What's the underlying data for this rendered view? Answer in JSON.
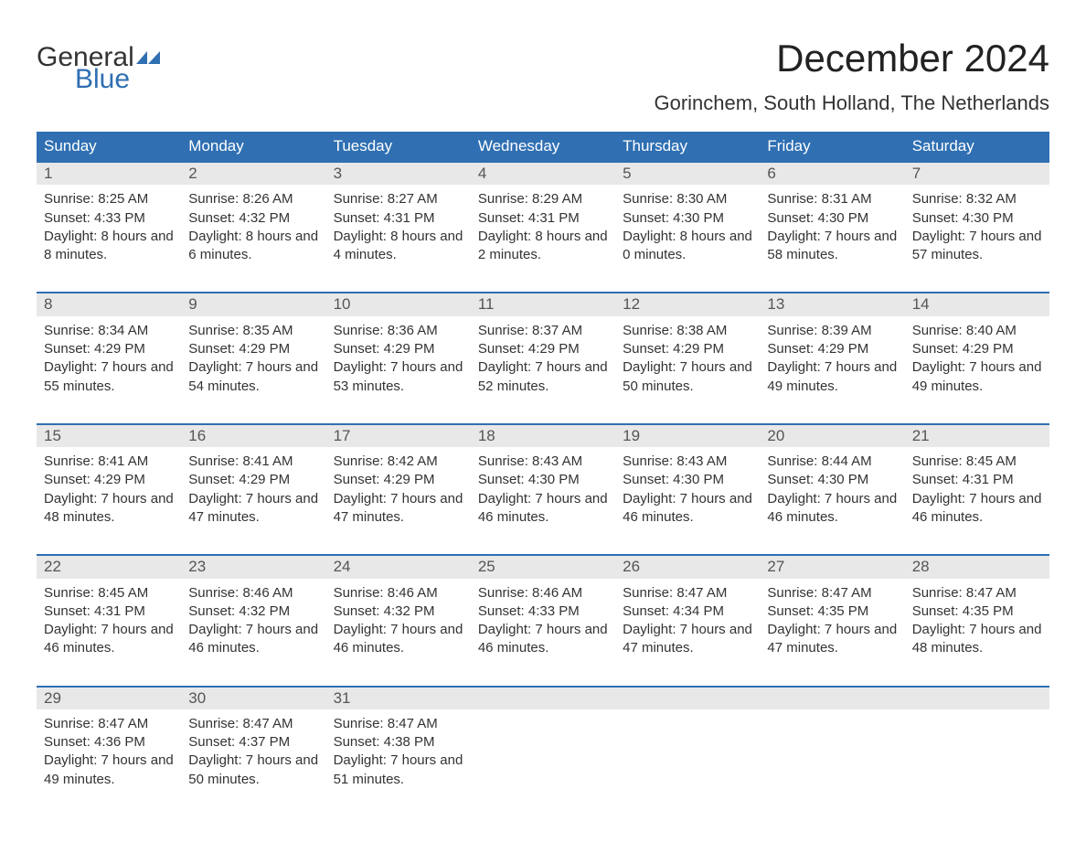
{
  "logo": {
    "line1": "General",
    "line2": "Blue"
  },
  "title": "December 2024",
  "location": "Gorinchem, South Holland, The Netherlands",
  "colors": {
    "header_bg": "#2f6fb2",
    "header_text": "#ffffff",
    "daynum_bg": "#e8e8e8",
    "rule": "#2f6fb2",
    "text": "#333333",
    "bg": "#ffffff"
  },
  "fonts": {
    "title_size_pt": 42,
    "location_size_pt": 22,
    "header_size_pt": 17,
    "cell_size_pt": 15
  },
  "weekdays": [
    "Sunday",
    "Monday",
    "Tuesday",
    "Wednesday",
    "Thursday",
    "Friday",
    "Saturday"
  ],
  "weeks": [
    [
      {
        "n": "1",
        "sr": "8:25 AM",
        "ss": "4:33 PM",
        "dl": "8 hours and 8 minutes."
      },
      {
        "n": "2",
        "sr": "8:26 AM",
        "ss": "4:32 PM",
        "dl": "8 hours and 6 minutes."
      },
      {
        "n": "3",
        "sr": "8:27 AM",
        "ss": "4:31 PM",
        "dl": "8 hours and 4 minutes."
      },
      {
        "n": "4",
        "sr": "8:29 AM",
        "ss": "4:31 PM",
        "dl": "8 hours and 2 minutes."
      },
      {
        "n": "5",
        "sr": "8:30 AM",
        "ss": "4:30 PM",
        "dl": "8 hours and 0 minutes."
      },
      {
        "n": "6",
        "sr": "8:31 AM",
        "ss": "4:30 PM",
        "dl": "7 hours and 58 minutes."
      },
      {
        "n": "7",
        "sr": "8:32 AM",
        "ss": "4:30 PM",
        "dl": "7 hours and 57 minutes."
      }
    ],
    [
      {
        "n": "8",
        "sr": "8:34 AM",
        "ss": "4:29 PM",
        "dl": "7 hours and 55 minutes."
      },
      {
        "n": "9",
        "sr": "8:35 AM",
        "ss": "4:29 PM",
        "dl": "7 hours and 54 minutes."
      },
      {
        "n": "10",
        "sr": "8:36 AM",
        "ss": "4:29 PM",
        "dl": "7 hours and 53 minutes."
      },
      {
        "n": "11",
        "sr": "8:37 AM",
        "ss": "4:29 PM",
        "dl": "7 hours and 52 minutes."
      },
      {
        "n": "12",
        "sr": "8:38 AM",
        "ss": "4:29 PM",
        "dl": "7 hours and 50 minutes."
      },
      {
        "n": "13",
        "sr": "8:39 AM",
        "ss": "4:29 PM",
        "dl": "7 hours and 49 minutes."
      },
      {
        "n": "14",
        "sr": "8:40 AM",
        "ss": "4:29 PM",
        "dl": "7 hours and 49 minutes."
      }
    ],
    [
      {
        "n": "15",
        "sr": "8:41 AM",
        "ss": "4:29 PM",
        "dl": "7 hours and 48 minutes."
      },
      {
        "n": "16",
        "sr": "8:41 AM",
        "ss": "4:29 PM",
        "dl": "7 hours and 47 minutes."
      },
      {
        "n": "17",
        "sr": "8:42 AM",
        "ss": "4:29 PM",
        "dl": "7 hours and 47 minutes."
      },
      {
        "n": "18",
        "sr": "8:43 AM",
        "ss": "4:30 PM",
        "dl": "7 hours and 46 minutes."
      },
      {
        "n": "19",
        "sr": "8:43 AM",
        "ss": "4:30 PM",
        "dl": "7 hours and 46 minutes."
      },
      {
        "n": "20",
        "sr": "8:44 AM",
        "ss": "4:30 PM",
        "dl": "7 hours and 46 minutes."
      },
      {
        "n": "21",
        "sr": "8:45 AM",
        "ss": "4:31 PM",
        "dl": "7 hours and 46 minutes."
      }
    ],
    [
      {
        "n": "22",
        "sr": "8:45 AM",
        "ss": "4:31 PM",
        "dl": "7 hours and 46 minutes."
      },
      {
        "n": "23",
        "sr": "8:46 AM",
        "ss": "4:32 PM",
        "dl": "7 hours and 46 minutes."
      },
      {
        "n": "24",
        "sr": "8:46 AM",
        "ss": "4:32 PM",
        "dl": "7 hours and 46 minutes."
      },
      {
        "n": "25",
        "sr": "8:46 AM",
        "ss": "4:33 PM",
        "dl": "7 hours and 46 minutes."
      },
      {
        "n": "26",
        "sr": "8:47 AM",
        "ss": "4:34 PM",
        "dl": "7 hours and 47 minutes."
      },
      {
        "n": "27",
        "sr": "8:47 AM",
        "ss": "4:35 PM",
        "dl": "7 hours and 47 minutes."
      },
      {
        "n": "28",
        "sr": "8:47 AM",
        "ss": "4:35 PM",
        "dl": "7 hours and 48 minutes."
      }
    ],
    [
      {
        "n": "29",
        "sr": "8:47 AM",
        "ss": "4:36 PM",
        "dl": "7 hours and 49 minutes."
      },
      {
        "n": "30",
        "sr": "8:47 AM",
        "ss": "4:37 PM",
        "dl": "7 hours and 50 minutes."
      },
      {
        "n": "31",
        "sr": "8:47 AM",
        "ss": "4:38 PM",
        "dl": "7 hours and 51 minutes."
      },
      null,
      null,
      null,
      null
    ]
  ],
  "labels": {
    "sunrise": "Sunrise: ",
    "sunset": "Sunset: ",
    "daylight": "Daylight: "
  }
}
